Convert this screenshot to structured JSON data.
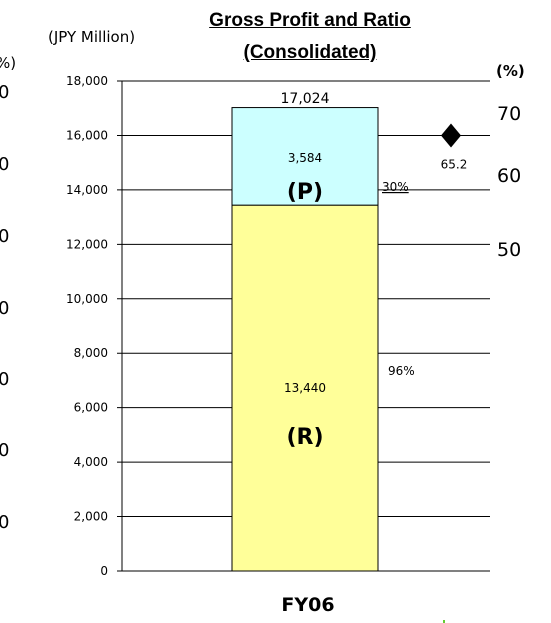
{
  "chart_data": {
    "type": "bar",
    "stacked": true,
    "title_line1": "Gross Profit and Ratio",
    "title_line2": "(Consolidated)",
    "y_unit_label": "(JPY Million)",
    "y2_unit_label": "(%)",
    "ylim": [
      0,
      18000
    ],
    "yticks": [
      "0",
      "2,000",
      "4,000",
      "6,000",
      "8,000",
      "10,000",
      "12,000",
      "14,000",
      "16,000",
      "18,000"
    ],
    "y2ticks": [
      "50",
      "60",
      "70"
    ],
    "categories": [
      "FY06"
    ],
    "total_label": "17,024",
    "series": [
      {
        "name": "(R)",
        "value_label": "13,440",
        "values": [
          13440
        ],
        "color": "#ffff99",
        "ratio_label": "96%"
      },
      {
        "name": "(P)",
        "value_label": "3,584",
        "values": [
          3584
        ],
        "color": "#ccffff",
        "ratio_label": "30%"
      }
    ],
    "marker": {
      "value": 65.2,
      "label": "65.2"
    },
    "left_cut_ticks": [
      "0",
      "0",
      "0",
      "0",
      "0",
      "0",
      "0"
    ],
    "left_cut_unit": "%)"
  }
}
